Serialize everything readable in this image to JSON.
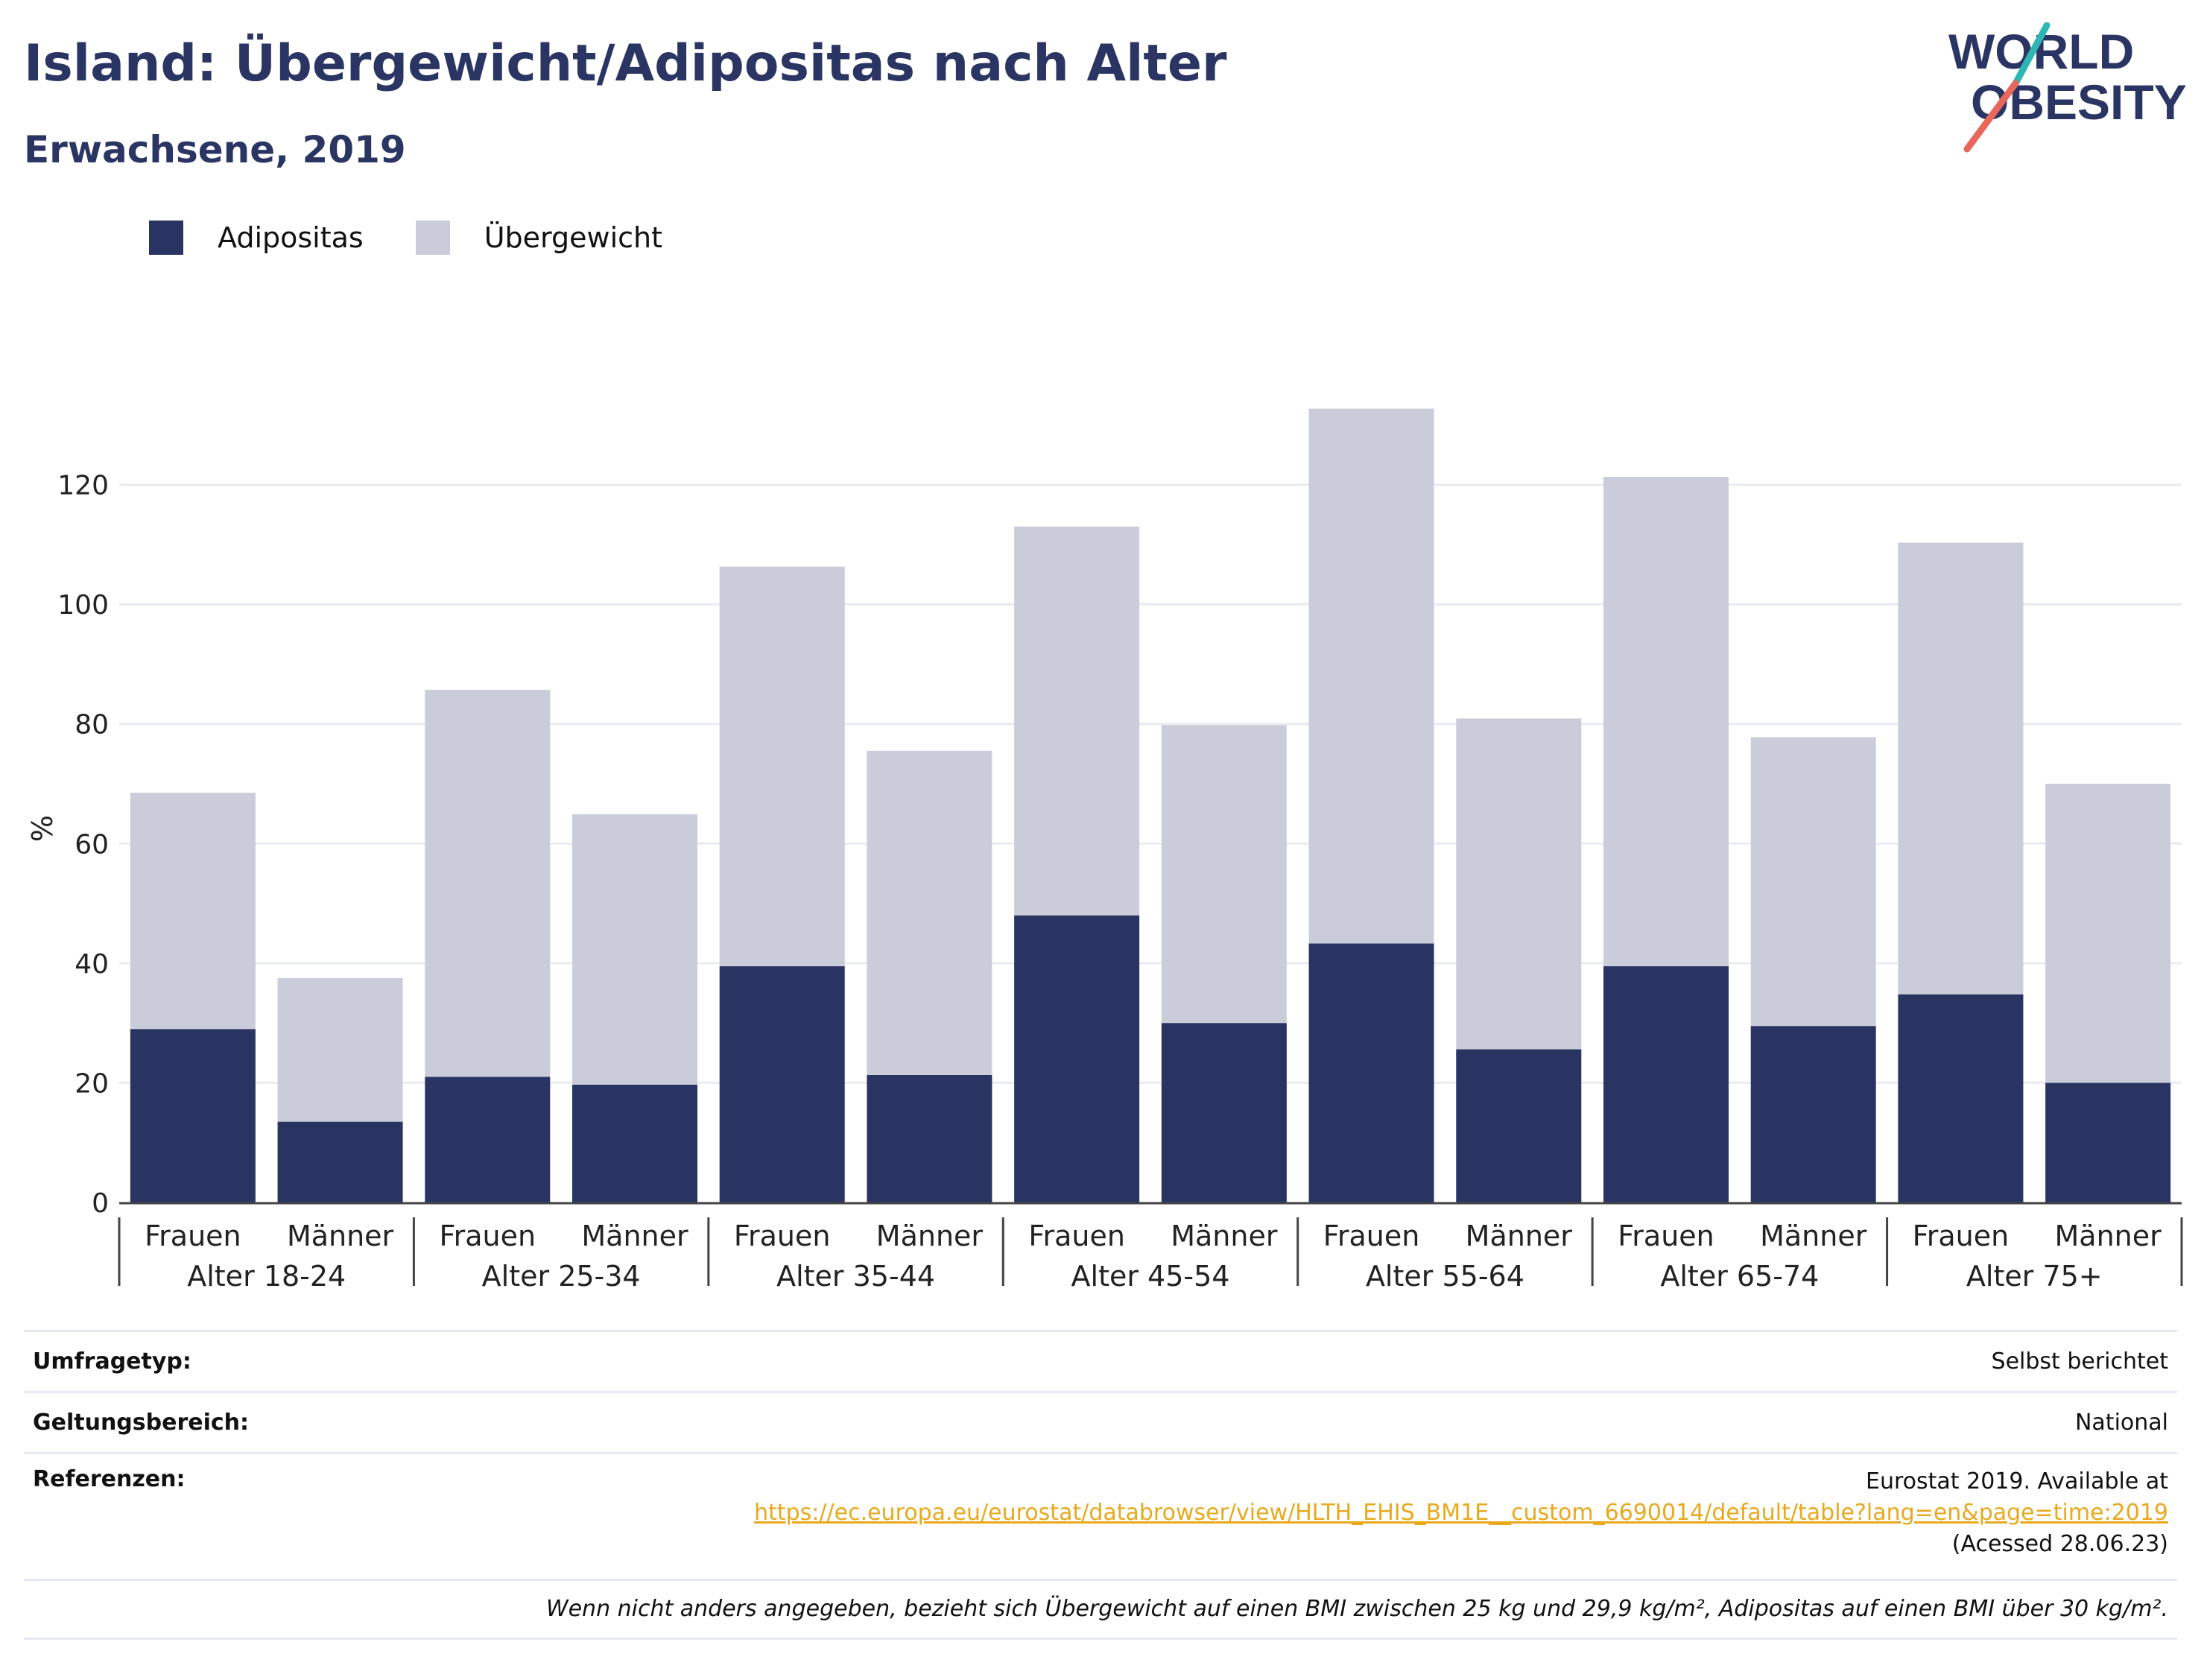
{
  "title": "Island: Übergewicht/Adipositas nach Alter",
  "subtitle": "Erwachsene, 2019",
  "logo": {
    "line1": "WORLD",
    "line2": "OBESITY"
  },
  "colors": {
    "obesity": "#293462",
    "overweight": "#cacdd9",
    "title": "#2b3563",
    "grid": "#e9ebf2",
    "link": "#e8a91d"
  },
  "chart_data": {
    "type": "bar",
    "stacked": true,
    "ylabel": "%",
    "ylim": [
      0,
      140
    ],
    "yticks": [
      0,
      20,
      40,
      60,
      80,
      100,
      120
    ],
    "groups": [
      "Alter 18-24",
      "Alter 25-34",
      "Alter 35-44",
      "Alter 45-54",
      "Alter 55-64",
      "Alter 65-74",
      "Alter 75+"
    ],
    "categories": [
      "Frauen",
      "Männer",
      "Frauen",
      "Männer",
      "Frauen",
      "Männer",
      "Frauen",
      "Männer",
      "Frauen",
      "Männer",
      "Frauen",
      "Männer",
      "Frauen",
      "Männer"
    ],
    "series": [
      {
        "name": "Adipositas",
        "values": [
          29,
          13.5,
          21,
          19.7,
          39.5,
          21.3,
          48,
          30,
          43.3,
          25.6,
          39.5,
          29.5,
          34.8,
          20
        ]
      },
      {
        "name": "Übergewicht",
        "values": [
          39.5,
          24,
          64.7,
          45.2,
          66.8,
          54.2,
          65,
          49.8,
          89.4,
          55.3,
          81.8,
          48.3,
          75.5,
          50
        ]
      }
    ],
    "legend_position": "top-left",
    "grid": true
  },
  "info": {
    "survey_label": "Umfragetyp:",
    "survey_value": "Selbst berichtet",
    "scope_label": "Geltungsbereich:",
    "scope_value": "National",
    "ref_label": "Referenzen:",
    "ref_line1": "Eurostat 2019. Available at",
    "ref_link": "https://ec.europa.eu/eurostat/databrowser/view/HLTH_EHIS_BM1E__custom_6690014/default/table?lang=en&page=time:2019",
    "ref_line3": "(Acessed 28.06.23)",
    "footnote": "Wenn nicht anders angegeben, bezieht sich Übergewicht auf einen BMI zwischen 25 kg und 29,9 kg/m², Adipositas auf einen BMI über 30 kg/m²."
  }
}
